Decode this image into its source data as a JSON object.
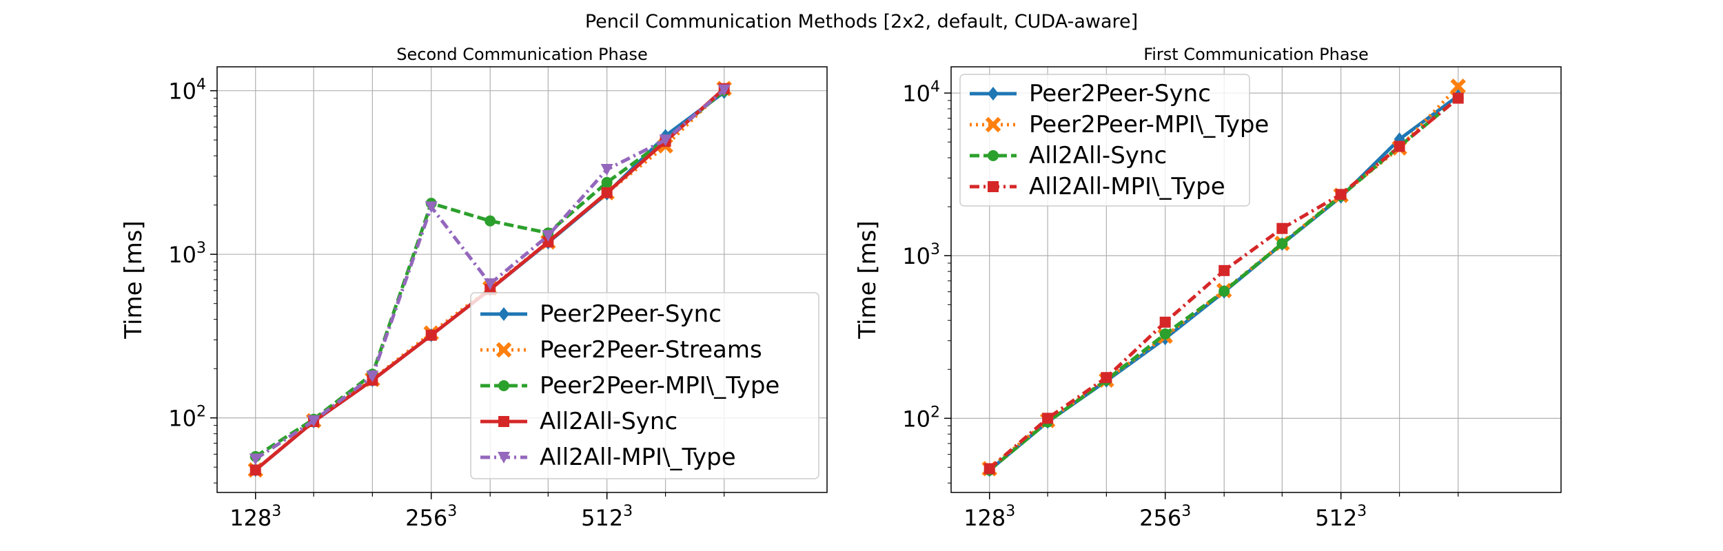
{
  "figure": {
    "suptitle": "Pencil Communication Methods [2x2, default, CUDA-aware]",
    "colors": {
      "blue": "#1f77b4",
      "orange": "#ff7f0e",
      "green": "#2ca02c",
      "red": "#d62728",
      "purple": "#9467bd",
      "grid": "#b0b0b0"
    }
  },
  "chart_data": [
    {
      "type": "line",
      "title": "Second Communication Phase",
      "ylabel": "Time [ms]",
      "xlabel": "",
      "xscale": "log2",
      "yscale": "log",
      "xlim": [
        110,
        1220
      ],
      "ylim": [
        35,
        14000
      ],
      "x": [
        128,
        161,
        203,
        256,
        323,
        406,
        512,
        645,
        813
      ],
      "xticks": [
        {
          "value": 128,
          "base": "128",
          "exp": "3"
        },
        {
          "value": 256,
          "base": "256",
          "exp": "3"
        },
        {
          "value": 512,
          "base": "512",
          "exp": "3"
        }
      ],
      "yticks": [
        {
          "value": 100,
          "base": "10",
          "exp": "2"
        },
        {
          "value": 1000,
          "base": "10",
          "exp": "3"
        },
        {
          "value": 10000,
          "base": "10",
          "exp": "4"
        }
      ],
      "grid": true,
      "legend_position": "lower-right",
      "series": [
        {
          "name": "Peer2Peer-Sync",
          "color": "#1f77b4",
          "linestyle": "solid",
          "marker": "diamond",
          "values": [
            48,
            95,
            170,
            320,
            610,
            1180,
            2350,
            5300,
            9800
          ]
        },
        {
          "name": "Peer2Peer-Streams",
          "color": "#ff7f0e",
          "linestyle": "dotted",
          "marker": "x",
          "values": [
            48,
            96,
            172,
            330,
            620,
            1190,
            2380,
            4600,
            10300
          ]
        },
        {
          "name": "Peer2Peer-MPI\\_Type",
          "color": "#2ca02c",
          "linestyle": "dashed",
          "marker": "circle",
          "values": [
            58,
            98,
            185,
            2050,
            1600,
            1350,
            2750,
            5000,
            10000
          ]
        },
        {
          "name": "All2All-Sync",
          "color": "#d62728",
          "linestyle": "solid",
          "marker": "square",
          "values": [
            48,
            95,
            170,
            320,
            610,
            1190,
            2380,
            4900,
            10300
          ]
        },
        {
          "name": "All2All-MPI\\_Type",
          "color": "#9467bd",
          "linestyle": "dashdot",
          "marker": "triangle-down",
          "values": [
            56,
            96,
            180,
            1950,
            660,
            1300,
            3300,
            5000,
            10100
          ]
        }
      ]
    },
    {
      "type": "line",
      "title": "First Communication Phase",
      "ylabel": "Time [ms]",
      "xlabel": "",
      "xscale": "log2",
      "yscale": "log",
      "xlim": [
        110,
        1220
      ],
      "ylim": [
        35,
        14500
      ],
      "x": [
        128,
        161,
        203,
        256,
        323,
        406,
        512,
        645,
        813
      ],
      "xticks": [
        {
          "value": 128,
          "base": "128",
          "exp": "3"
        },
        {
          "value": 256,
          "base": "256",
          "exp": "3"
        },
        {
          "value": 512,
          "base": "512",
          "exp": "3"
        }
      ],
      "yticks": [
        {
          "value": 100,
          "base": "10",
          "exp": "2"
        },
        {
          "value": 1000,
          "base": "10",
          "exp": "3"
        },
        {
          "value": 10000,
          "base": "10",
          "exp": "4"
        }
      ],
      "grid": true,
      "legend_position": "upper-left",
      "series": [
        {
          "name": "Peer2Peer-Sync",
          "color": "#1f77b4",
          "linestyle": "solid",
          "marker": "diamond",
          "values": [
            48,
            95,
            170,
            310,
            600,
            1180,
            2300,
            5200,
            9600
          ]
        },
        {
          "name": "Peer2Peer-MPI\\_Type",
          "color": "#ff7f0e",
          "linestyle": "dotted",
          "marker": "x",
          "values": [
            49,
            97,
            172,
            320,
            610,
            1190,
            2350,
            4600,
            11000
          ]
        },
        {
          "name": "All2All-Sync",
          "color": "#2ca02c",
          "linestyle": "dashed",
          "marker": "circle",
          "values": [
            48,
            95,
            172,
            330,
            605,
            1185,
            2330,
            4700,
            9300
          ]
        },
        {
          "name": "All2All-MPI\\_Type",
          "color": "#d62728",
          "linestyle": "dashdot",
          "marker": "square",
          "values": [
            49,
            100,
            178,
            390,
            810,
            1470,
            2380,
            4700,
            9300
          ]
        }
      ]
    }
  ]
}
